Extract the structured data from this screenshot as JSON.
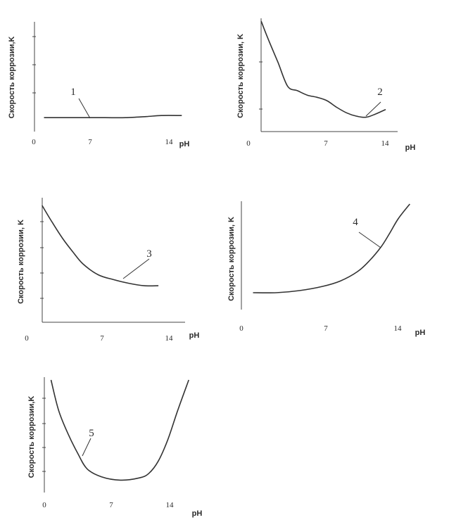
{
  "chart_data": [
    {
      "type": "line",
      "ylabel": "Скорость коррозии,K",
      "xlabel": "pH",
      "x_ticks": [
        "0",
        "7",
        "14"
      ],
      "xlim": [
        0,
        14
      ],
      "ylim": [
        0,
        10
      ],
      "curve_label": "1",
      "series": [
        {
          "x": [
            1,
            3,
            5,
            7,
            9,
            11,
            12.5,
            14.5
          ],
          "y": [
            1.3,
            1.3,
            1.3,
            1.3,
            1.3,
            1.4,
            1.5,
            1.5
          ]
        }
      ]
    },
    {
      "type": "line",
      "ylabel": "Скорость коррозии, K",
      "xlabel": "pH",
      "x_ticks": [
        "0",
        "7",
        "14"
      ],
      "xlim": [
        0,
        14
      ],
      "ylim": [
        0,
        10
      ],
      "curve_label": "2",
      "series": [
        {
          "x": [
            1.3,
            2,
            3,
            4,
            5,
            6,
            7,
            8,
            9,
            10,
            11,
            12,
            13,
            14
          ],
          "y": [
            10,
            8.4,
            6.3,
            4.1,
            3.7,
            3.3,
            3.1,
            2.8,
            2.2,
            1.7,
            1.4,
            1.3,
            1.6,
            2
          ]
        }
      ]
    },
    {
      "type": "line",
      "ylabel": "Скорость коррозии, K",
      "xlabel": "pH",
      "x_ticks": [
        "0",
        "7",
        "14"
      ],
      "xlim": [
        0,
        14
      ],
      "ylim": [
        0,
        10
      ],
      "curve_label": "3",
      "series": [
        {
          "x": [
            1.5,
            2.5,
            3.5,
            4.5,
            5.5,
            7,
            8.5,
            10,
            11.5,
            12.9
          ],
          "y": [
            9.6,
            8.2,
            6.9,
            5.8,
            4.8,
            3.9,
            3.5,
            3.2,
            3.0,
            3.0
          ]
        }
      ]
    },
    {
      "type": "line",
      "ylabel": "Скорость коррозии, K",
      "xlabel": "pH",
      "x_ticks": [
        "0",
        "7",
        "14"
      ],
      "xlim": [
        0,
        14
      ],
      "ylim": [
        0,
        10
      ],
      "curve_label": "4",
      "series": [
        {
          "x": [
            1,
            3,
            5,
            7,
            8.5,
            10,
            11,
            12,
            12.7,
            13.5,
            14.5
          ],
          "y": [
            1.6,
            1.6,
            1.8,
            2.2,
            2.7,
            3.6,
            4.6,
            5.9,
            7.1,
            8.6,
            10
          ]
        }
      ]
    },
    {
      "type": "line",
      "ylabel": "Скорость коррозии,K",
      "xlabel": "pH",
      "x_ticks": [
        "0",
        "7",
        "14"
      ],
      "xlim": [
        0,
        14
      ],
      "ylim": [
        0,
        10
      ],
      "curve_label": "5",
      "series": [
        {
          "x": [
            0.7,
            1.5,
            2.5,
            3.5,
            4.5,
            6,
            8,
            10,
            11,
            12,
            13,
            14,
            15.2
          ],
          "y": [
            10,
            7.3,
            5.2,
            3.5,
            2.1,
            1.4,
            1.1,
            1.3,
            1.7,
            2.8,
            4.7,
            7.2,
            10
          ]
        }
      ]
    }
  ]
}
